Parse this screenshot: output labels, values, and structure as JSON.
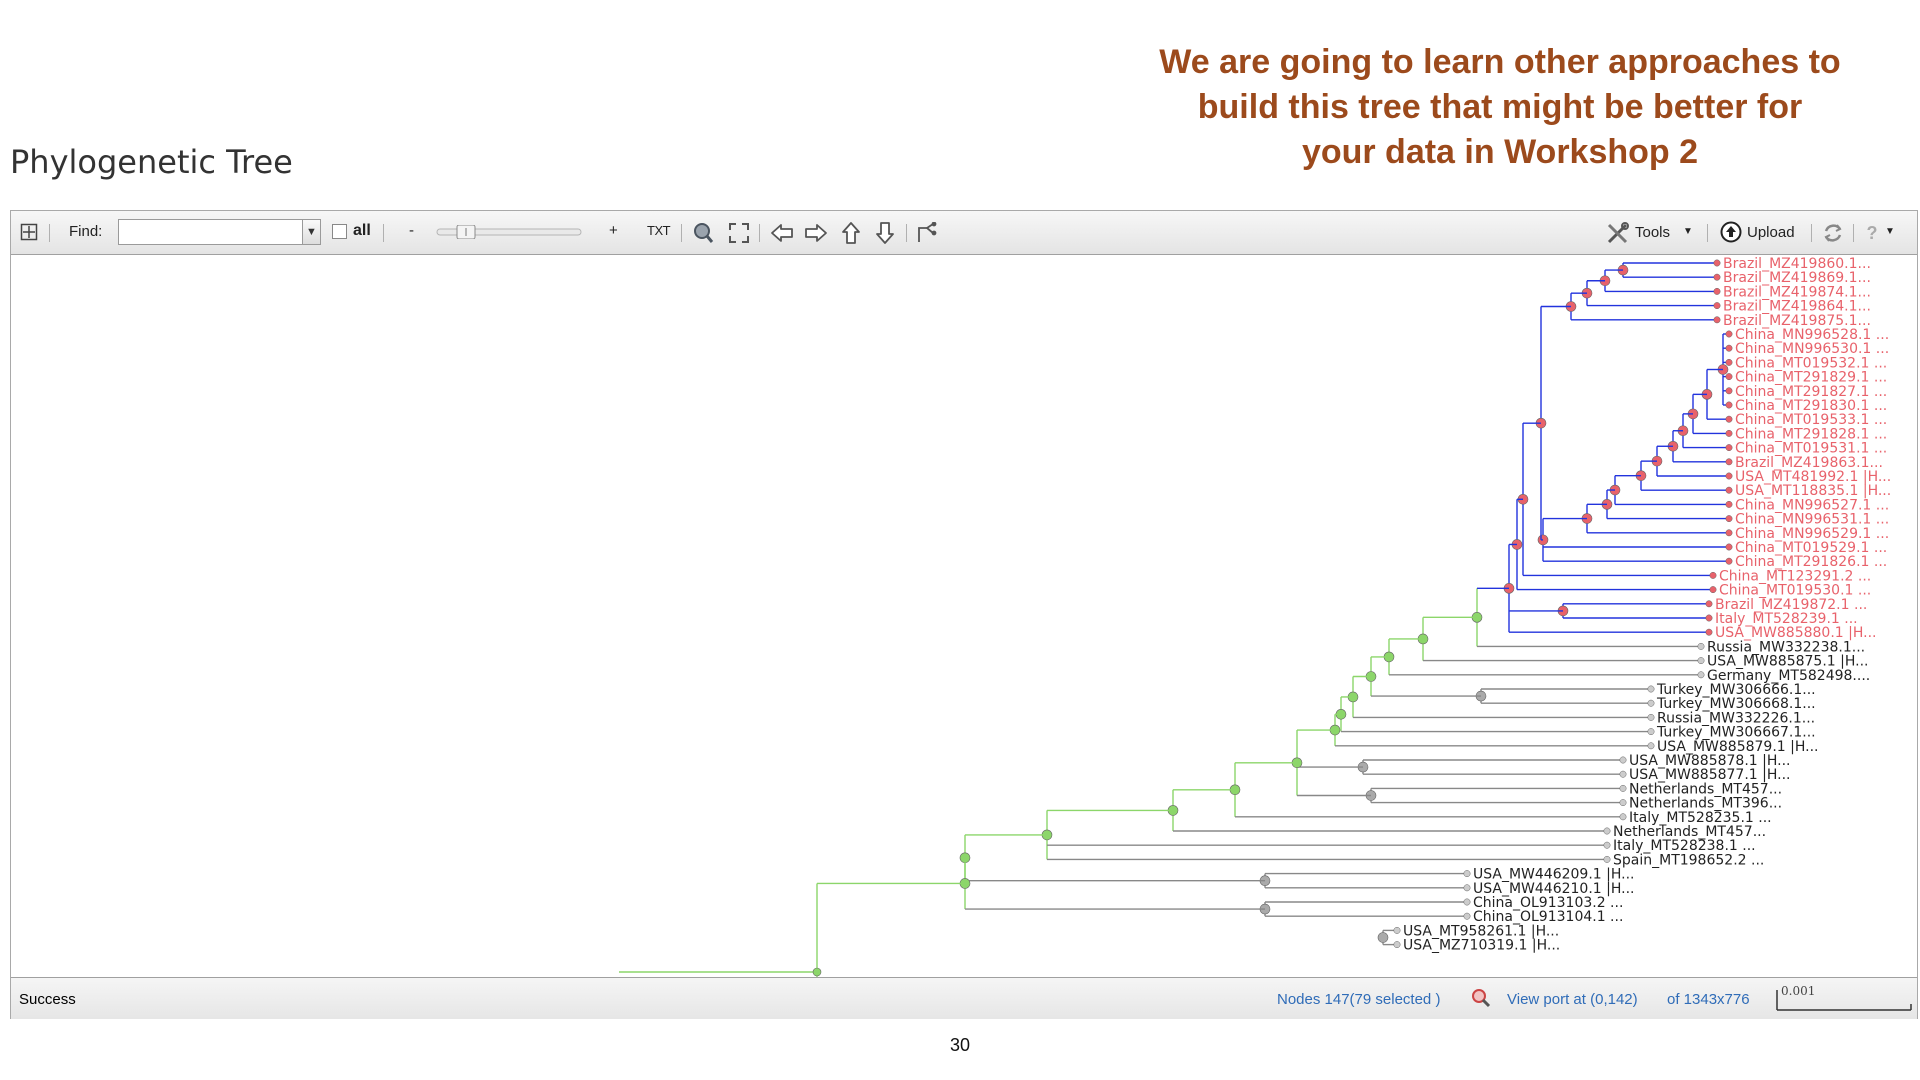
{
  "callout": {
    "lines": [
      "We are going to learn other approaches to",
      "build this tree that might be better for",
      "your data in Workshop 2"
    ],
    "color": "#9c4a1c"
  },
  "section_title": "Phylogenetic Tree",
  "toolbar": {
    "expand_icon": "grid-expand-icon",
    "find_label": "Find:",
    "find_value": "",
    "all_label": "all",
    "zoom_minus": "-",
    "zoom_plus": "+",
    "txt_label": "TXT",
    "tools_label": "Tools",
    "upload_label": "Upload",
    "icons": [
      "search-node-icon",
      "fit-screen-icon",
      "arrow-left-icon",
      "arrow-right-icon",
      "arrow-up-icon",
      "arrow-down-icon",
      "reroot-icon",
      "tools-icon",
      "upload-icon",
      "refresh-icon",
      "help-icon"
    ]
  },
  "status": {
    "message": "Success",
    "nodes": "Nodes 147(79 selected )",
    "viewport": "View port at (0,142)",
    "size": "of 1343x776",
    "scale": "0.001"
  },
  "colors": {
    "selected_leaf": "#e8626b",
    "selected_branch": "#2233dd",
    "root_branch": "#8cd66a",
    "plain_branch": "#888888",
    "plain_leaf": "#222222"
  },
  "leaves": [
    {
      "label": "Brazil_MZ419860.1...",
      "selected": true
    },
    {
      "label": "Brazil_MZ419869.1...",
      "selected": true
    },
    {
      "label": "Brazil_MZ419874.1...",
      "selected": true
    },
    {
      "label": "Brazil_MZ419864.1...",
      "selected": true
    },
    {
      "label": "Brazil_MZ419875.1...",
      "selected": true
    },
    {
      "label": "China_MN996528.1 ...",
      "selected": true
    },
    {
      "label": "China_MN996530.1 ...",
      "selected": true
    },
    {
      "label": "China_MT019532.1 ...",
      "selected": true
    },
    {
      "label": "China_MT291829.1 ...",
      "selected": true
    },
    {
      "label": "China_MT291827.1 ...",
      "selected": true
    },
    {
      "label": "China_MT291830.1 ...",
      "selected": true
    },
    {
      "label": "China_MT019533.1 ...",
      "selected": true
    },
    {
      "label": "China_MT291828.1 ...",
      "selected": true
    },
    {
      "label": "China_MT019531.1 ...",
      "selected": true
    },
    {
      "label": "Brazil_MZ419863.1...",
      "selected": true
    },
    {
      "label": "USA_MT481992.1 |H...",
      "selected": true
    },
    {
      "label": "USA_MT118835.1 |H...",
      "selected": true
    },
    {
      "label": "China_MN996527.1 ...",
      "selected": true
    },
    {
      "label": "China_MN996531.1 ...",
      "selected": true
    },
    {
      "label": "China_MN996529.1 ...",
      "selected": true
    },
    {
      "label": "China_MT019529.1 ...",
      "selected": true
    },
    {
      "label": "China_MT291826.1 ...",
      "selected": true
    },
    {
      "label": "China_MT123291.2 ...",
      "selected": true
    },
    {
      "label": "China_MT019530.1 ...",
      "selected": true
    },
    {
      "label": "Brazil_MZ419872.1 ...",
      "selected": true
    },
    {
      "label": "Italy_MT528239.1 ...",
      "selected": true
    },
    {
      "label": "USA_MW885880.1 |H...",
      "selected": true
    },
    {
      "label": "Russia_MW332238.1...",
      "selected": false
    },
    {
      "label": "USA_MW885875.1 |H...",
      "selected": false
    },
    {
      "label": "Germany_MT582498....",
      "selected": false
    },
    {
      "label": "Turkey_MW306666.1...",
      "selected": false
    },
    {
      "label": "Turkey_MW306668.1...",
      "selected": false
    },
    {
      "label": "Russia_MW332226.1...",
      "selected": false
    },
    {
      "label": "Turkey_MW306667.1...",
      "selected": false
    },
    {
      "label": "USA_MW885879.1 |H...",
      "selected": false
    },
    {
      "label": "USA_MW885878.1 |H...",
      "selected": false
    },
    {
      "label": "USA_MW885877.1 |H...",
      "selected": false
    },
    {
      "label": "Netherlands_MT457...",
      "selected": false
    },
    {
      "label": "Netherlands_MT396...",
      "selected": false
    },
    {
      "label": "Italy_MT528235.1 ...",
      "selected": false
    },
    {
      "label": "Netherlands_MT457...",
      "selected": false
    },
    {
      "label": "Italy_MT528238.1 ...",
      "selected": false
    },
    {
      "label": "Spain_MT198652.2 ...",
      "selected": false
    },
    {
      "label": "USA_MW446209.1 |H...",
      "selected": false
    },
    {
      "label": "USA_MW446210.1 |H...",
      "selected": false
    },
    {
      "label": "China_OL913103.2 ...",
      "selected": false
    },
    {
      "label": "China_OL913104.1 ...",
      "selected": false
    },
    {
      "label": "USA_MT958261.1 |H...",
      "selected": false
    },
    {
      "label": "USA_MZ710319.1 |H...",
      "selected": false
    }
  ],
  "page_number": "30"
}
